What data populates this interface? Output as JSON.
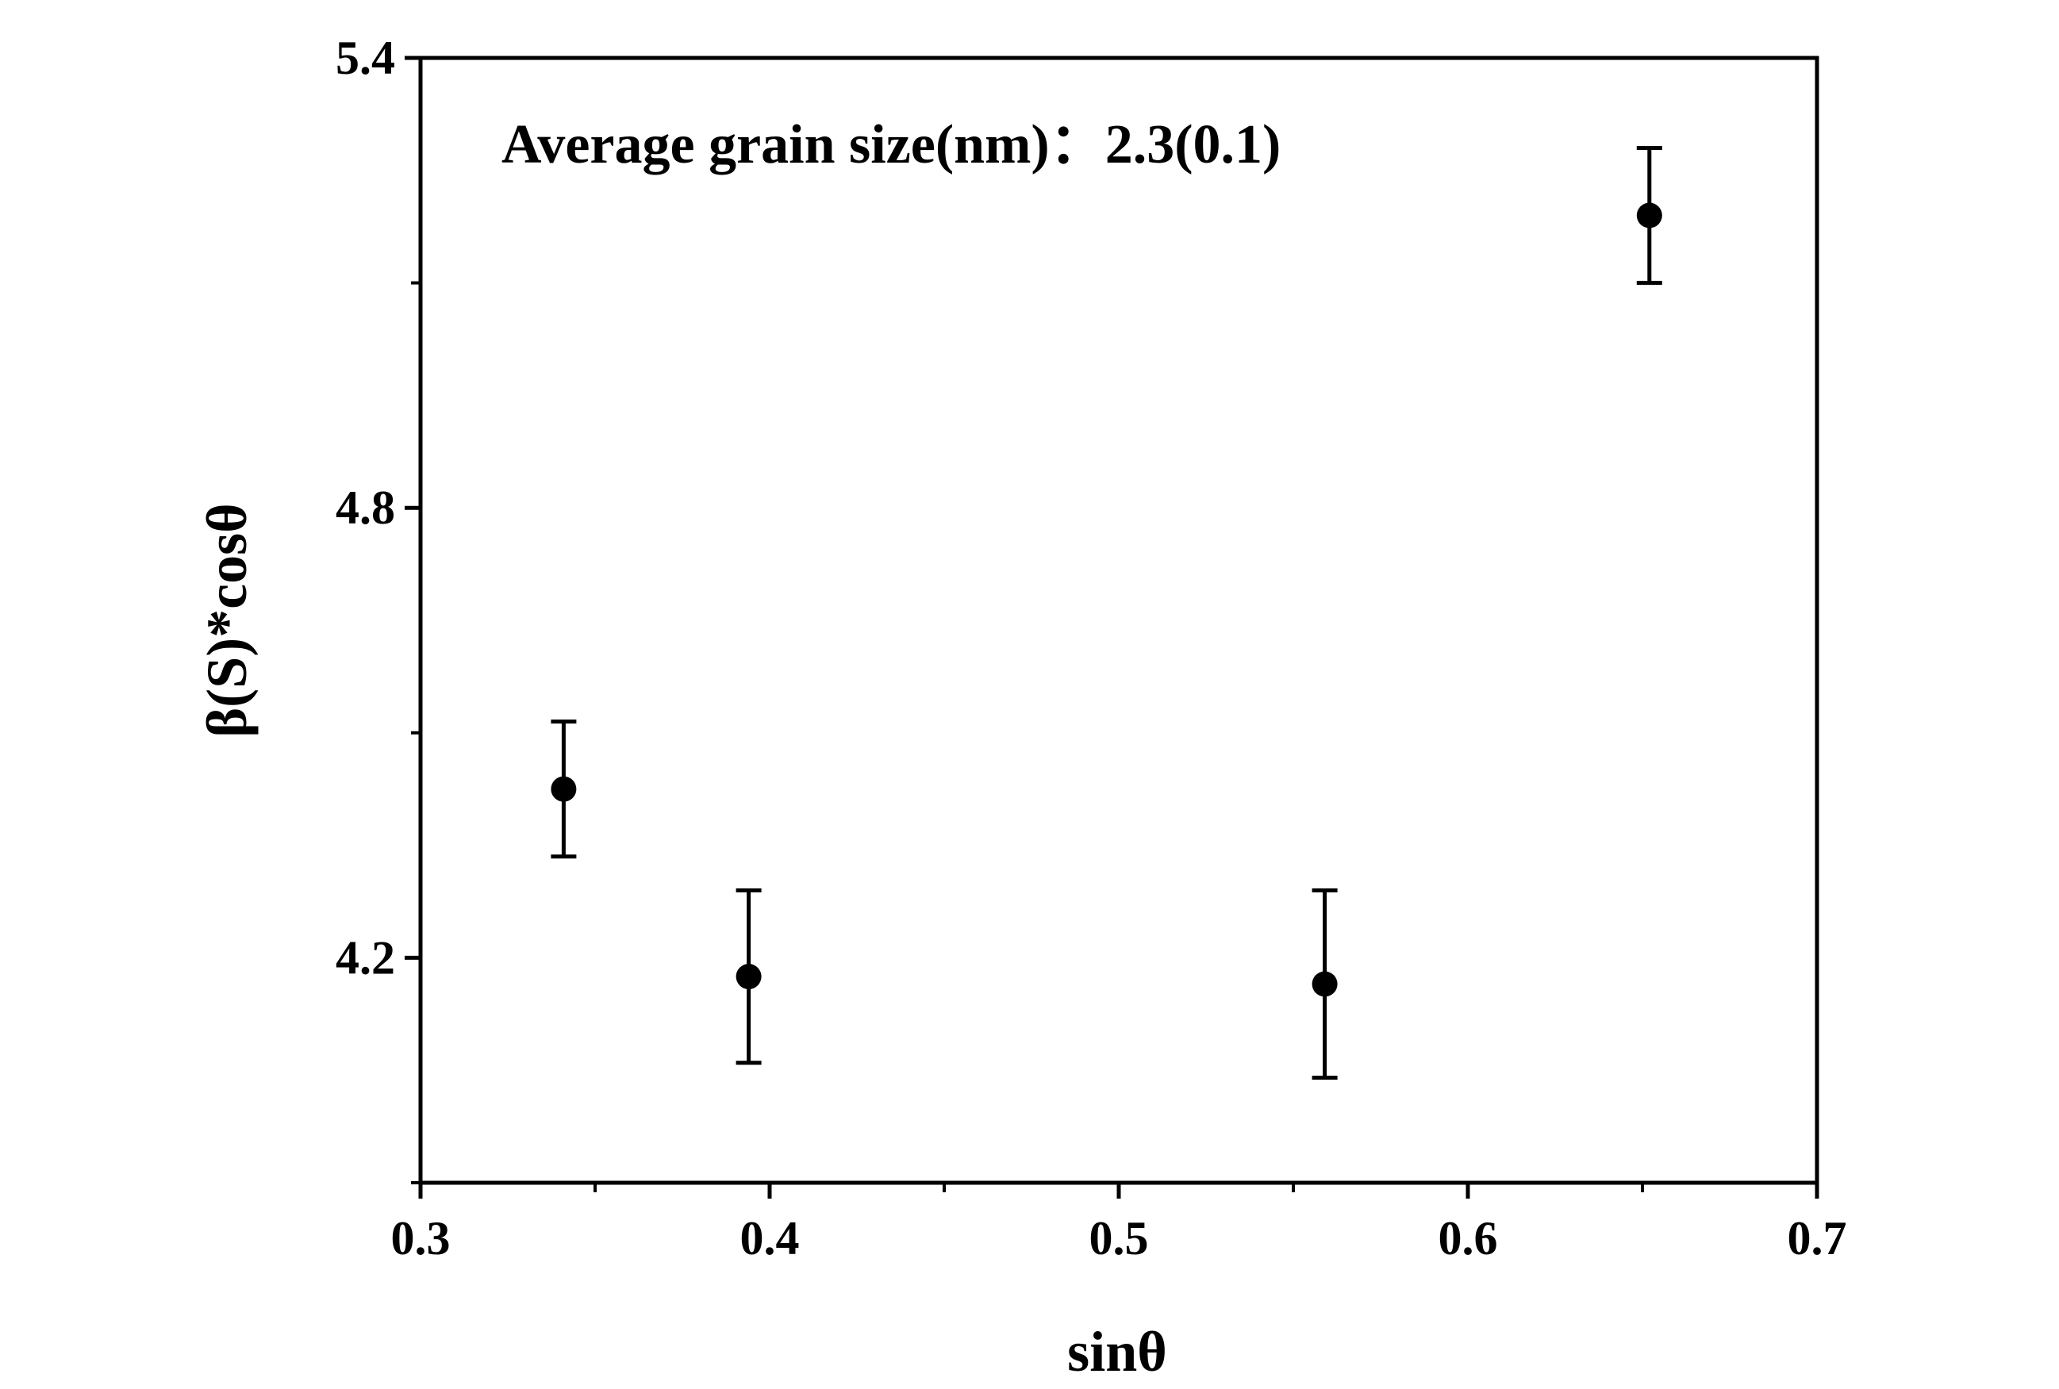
{
  "chart_data": {
    "type": "scatter",
    "xlabel": "sinθ",
    "ylabel": "β(S)*cosθ",
    "xlim": [
      0.3,
      0.7
    ],
    "ylim": [
      3.9,
      5.4
    ],
    "x_ticks": [
      0.3,
      0.4,
      0.5,
      0.6,
      0.7
    ],
    "x_tick_labels": [
      "0.3",
      "0.4",
      "0.5",
      "0.6",
      "0.7"
    ],
    "y_ticks": [
      4.2,
      4.8,
      5.4
    ],
    "y_tick_labels": [
      "4.2",
      "4.8",
      "5.4"
    ],
    "grid": false,
    "annotation": "Average grain size(nm)：2.3(0.1)",
    "marker_color": "#000000",
    "points": [
      {
        "x": 0.341,
        "y": 4.425,
        "err": 0.09
      },
      {
        "x": 0.394,
        "y": 4.175,
        "err": 0.115
      },
      {
        "x": 0.559,
        "y": 4.165,
        "err": 0.125
      },
      {
        "x": 0.652,
        "y": 5.19,
        "err": 0.09
      }
    ]
  }
}
